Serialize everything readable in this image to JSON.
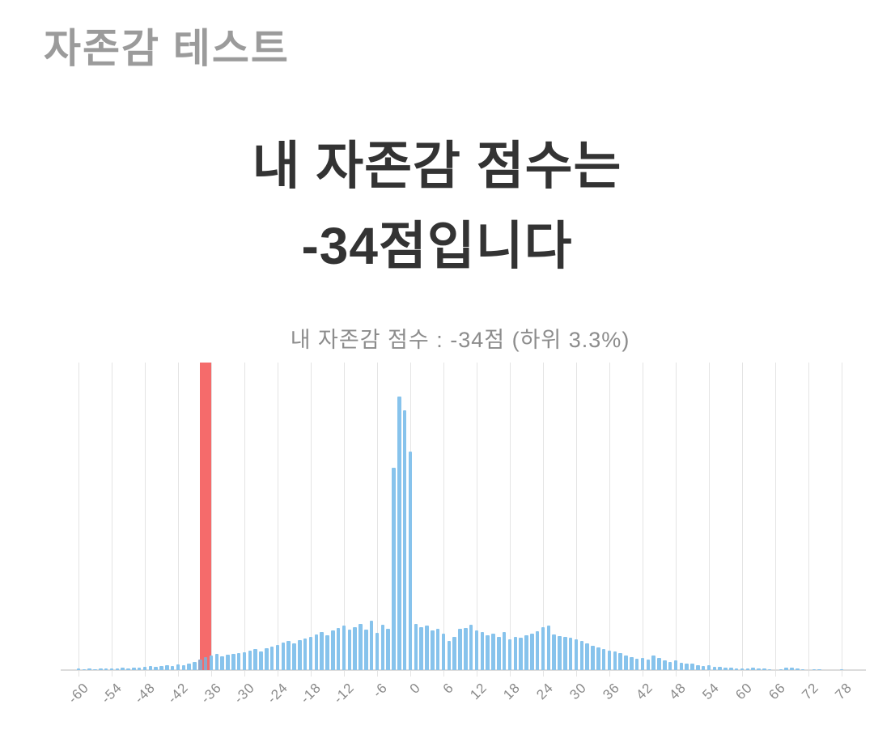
{
  "page": {
    "header": "자존감 테스트"
  },
  "result": {
    "line1": "내 자존감 점수는",
    "line2": "-34점입니다"
  },
  "chart": {
    "colors": {
      "bar": "#87c3ec",
      "bar_on_highlight": "#8fa6c8",
      "highlight_band": "#f56b6b",
      "gridline": "#e4e4e4",
      "axis_line": "#dcdcdc",
      "tick_text": "#8a8a8a"
    }
  },
  "chart_data": {
    "type": "bar",
    "title": "내 자존감 점수 :  -34점 (하위 3.3%)",
    "xlabel": "",
    "ylabel": "",
    "x_min": -60,
    "x_max": 78,
    "grid": true,
    "legend": false,
    "highlight_score": -34,
    "highlight_percentile_text": "하위 3.3%",
    "highlight_band": {
      "right_score": -36,
      "points": 2
    },
    "x_tick_labels": [
      "-60",
      "-54",
      "-48",
      "-42",
      "-36",
      "-30",
      "-24",
      "-18",
      "-12",
      "-6",
      "0",
      "6",
      "12",
      "18",
      "24",
      "30",
      "36",
      "42",
      "48",
      "54",
      "60",
      "66",
      "72",
      "78"
    ],
    "y_unit": "relative frequency (pixel height, plot height = 380)",
    "ylim": [
      0,
      380
    ],
    "scores_note": "one bar per integer score from -60 to 78",
    "values": [
      2,
      1,
      2,
      1,
      2,
      2,
      2,
      2,
      3,
      2,
      3,
      3,
      4,
      5,
      4,
      5,
      6,
      5,
      7,
      6,
      8,
      10,
      13,
      16,
      18,
      20,
      17,
      19,
      20,
      21,
      22,
      24,
      26,
      23,
      27,
      29,
      31,
      34,
      36,
      33,
      37,
      39,
      41,
      44,
      47,
      43,
      49,
      52,
      55,
      50,
      53,
      57,
      50,
      61,
      46,
      56,
      51,
      250,
      338,
      321,
      270,
      57,
      53,
      55,
      49,
      51,
      45,
      36,
      41,
      51,
      52,
      56,
      49,
      47,
      43,
      45,
      41,
      47,
      38,
      41,
      40,
      43,
      45,
      48,
      53,
      55,
      44,
      42,
      41,
      40,
      38,
      36,
      33,
      30,
      28,
      26,
      24,
      23,
      21,
      18,
      16,
      14,
      15,
      13,
      18,
      15,
      12,
      10,
      12,
      9,
      8,
      8,
      6,
      5,
      6,
      4,
      4,
      3,
      3,
      2,
      2,
      2,
      3,
      2,
      2,
      1,
      0,
      1,
      3,
      3,
      2,
      1,
      0,
      1,
      1,
      0,
      0,
      0,
      1
    ]
  }
}
